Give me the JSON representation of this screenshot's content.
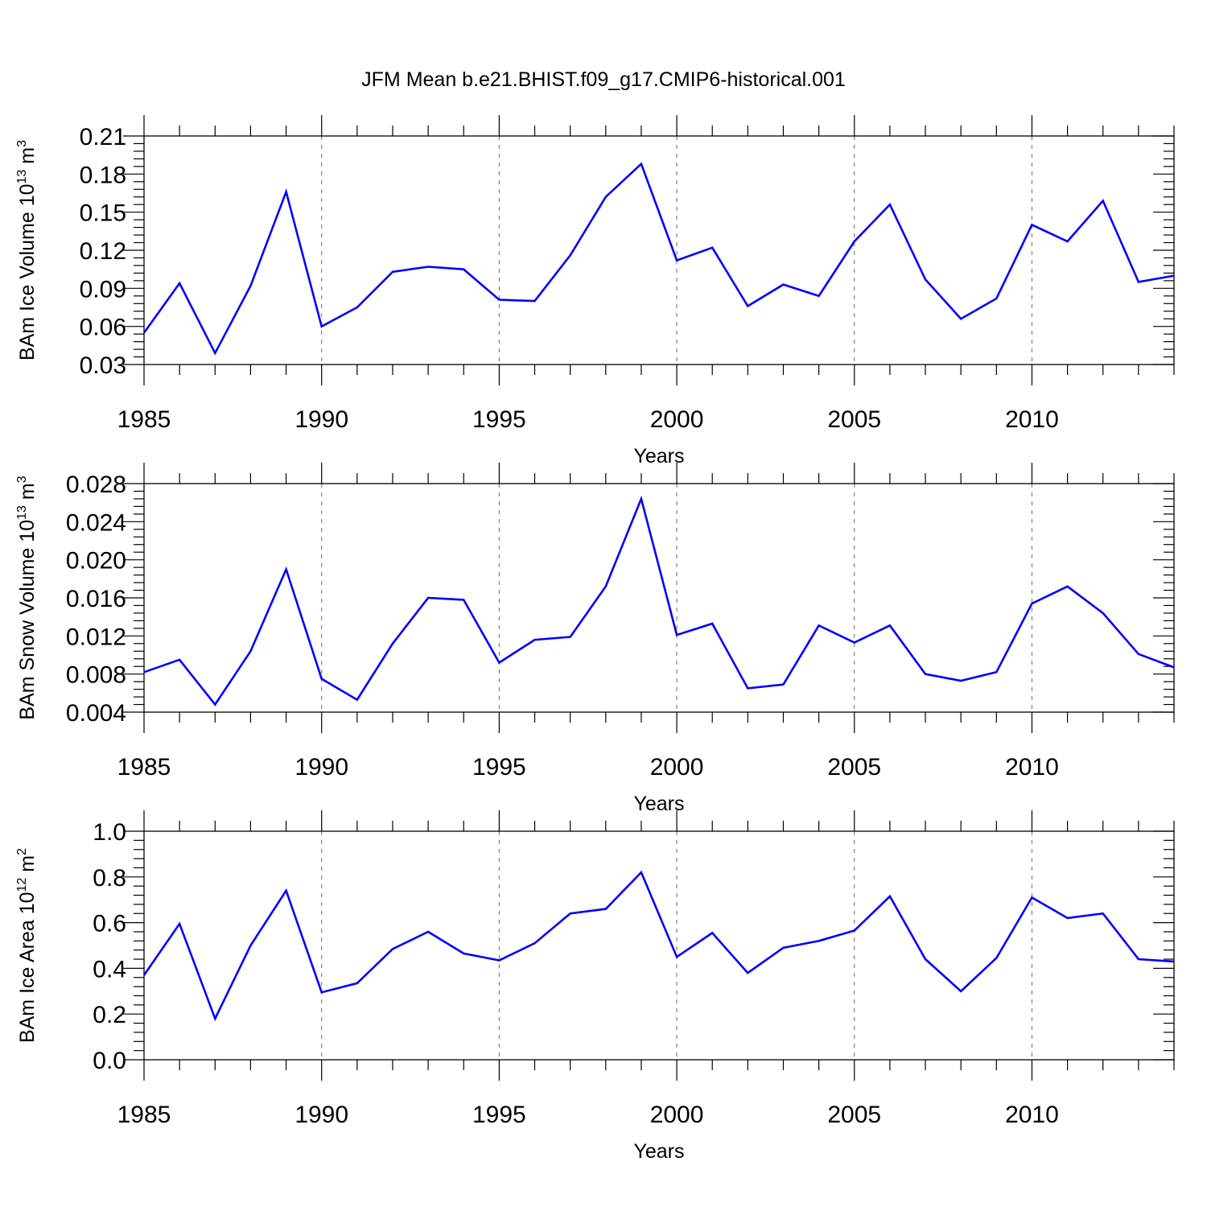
{
  "figure": {
    "title": "JFM Mean b.e21.BHIST.f09_g17.CMIP6-historical.001"
  },
  "colors": {
    "series": "#0000ff",
    "grid": "#777777",
    "axes": "#000000"
  },
  "chart_data": [
    {
      "type": "line",
      "title": "",
      "xlabel": "Years",
      "ylabel": "BAm Ice Volume 10",
      "ylabel_sup": "13",
      "ylabel_unit": " m",
      "ylabel_unit_sup": "3",
      "xlim": [
        1985,
        2014
      ],
      "ylim": [
        0.03,
        0.21
      ],
      "xticks": [
        1985,
        1990,
        1995,
        2000,
        2005,
        2010
      ],
      "xtick_labels": [
        "1985",
        "1990",
        "1995",
        "2000",
        "2005",
        "2010"
      ],
      "yticks": [
        0.03,
        0.06,
        0.09,
        0.12,
        0.15,
        0.18,
        0.21
      ],
      "ytick_labels": [
        "0.03",
        "0.06",
        "0.09",
        "0.12",
        "0.15",
        "0.18",
        "0.21"
      ],
      "grid": "vertical dashed lines at major x ticks",
      "x": [
        1985,
        1986,
        1987,
        1988,
        1989,
        1990,
        1991,
        1992,
        1993,
        1994,
        1995,
        1996,
        1997,
        1998,
        1999,
        2000,
        2001,
        2002,
        2003,
        2004,
        2005,
        2006,
        2007,
        2008,
        2009,
        2010,
        2011,
        2012,
        2013,
        2014
      ],
      "series": [
        {
          "values": [
            0.055,
            0.094,
            0.039,
            0.092,
            0.166,
            0.06,
            0.075,
            0.103,
            0.107,
            0.105,
            0.081,
            0.08,
            0.116,
            0.162,
            0.188,
            0.112,
            0.122,
            0.076,
            0.093,
            0.084,
            0.127,
            0.156,
            0.097,
            0.066,
            0.082,
            0.14,
            0.127,
            0.159,
            0.095,
            0.1
          ]
        }
      ]
    },
    {
      "type": "line",
      "title": "",
      "xlabel": "Years",
      "ylabel": "BAm Snow Volume 10",
      "ylabel_sup": "13",
      "ylabel_unit": " m",
      "ylabel_unit_sup": "3",
      "xlim": [
        1985,
        2014
      ],
      "ylim": [
        0.004,
        0.028
      ],
      "xticks": [
        1985,
        1990,
        1995,
        2000,
        2005,
        2010
      ],
      "xtick_labels": [
        "1985",
        "1990",
        "1995",
        "2000",
        "2005",
        "2010"
      ],
      "yticks": [
        0.004,
        0.008,
        0.012,
        0.016,
        0.02,
        0.024,
        0.028
      ],
      "ytick_labels": [
        "0.004",
        "0.008",
        "0.012",
        "0.016",
        "0.020",
        "0.024",
        "0.028"
      ],
      "grid": "vertical dashed lines at major x ticks",
      "x": [
        1985,
        1986,
        1987,
        1988,
        1989,
        1990,
        1991,
        1992,
        1993,
        1994,
        1995,
        1996,
        1997,
        1998,
        1999,
        2000,
        2001,
        2002,
        2003,
        2004,
        2005,
        2006,
        2007,
        2008,
        2009,
        2010,
        2011,
        2012,
        2013,
        2014
      ],
      "series": [
        {
          "values": [
            0.0082,
            0.0095,
            0.0048,
            0.0104,
            0.019,
            0.0075,
            0.0053,
            0.0112,
            0.016,
            0.0158,
            0.0092,
            0.0116,
            0.0119,
            0.0172,
            0.0264,
            0.0121,
            0.0133,
            0.0065,
            0.0069,
            0.0131,
            0.0113,
            0.0131,
            0.008,
            0.0073,
            0.0082,
            0.0154,
            0.0172,
            0.0144,
            0.0101,
            0.0087
          ]
        }
      ]
    },
    {
      "type": "line",
      "title": "",
      "xlabel": "Years",
      "ylabel": "BAm Ice Area 10",
      "ylabel_sup": "12",
      "ylabel_unit": " m",
      "ylabel_unit_sup": "2",
      "xlim": [
        1985,
        2014
      ],
      "ylim": [
        0.0,
        1.0
      ],
      "xticks": [
        1985,
        1990,
        1995,
        2000,
        2005,
        2010
      ],
      "xtick_labels": [
        "1985",
        "1990",
        "1995",
        "2000",
        "2005",
        "2010"
      ],
      "yticks": [
        0.0,
        0.2,
        0.4,
        0.6,
        0.8,
        1.0
      ],
      "ytick_labels": [
        "0.0",
        "0.2",
        "0.4",
        "0.6",
        "0.8",
        "1.0"
      ],
      "grid": "vertical dashed lines at major x ticks",
      "x": [
        1985,
        1986,
        1987,
        1988,
        1989,
        1990,
        1991,
        1992,
        1993,
        1994,
        1995,
        1996,
        1997,
        1998,
        1999,
        2000,
        2001,
        2002,
        2003,
        2004,
        2005,
        2006,
        2007,
        2008,
        2009,
        2010,
        2011,
        2012,
        2013,
        2014
      ],
      "series": [
        {
          "values": [
            0.37,
            0.595,
            0.18,
            0.5,
            0.74,
            0.295,
            0.335,
            0.485,
            0.56,
            0.465,
            0.435,
            0.51,
            0.64,
            0.66,
            0.82,
            0.45,
            0.555,
            0.38,
            0.49,
            0.52,
            0.565,
            0.715,
            0.44,
            0.3,
            0.445,
            0.71,
            0.62,
            0.64,
            0.44,
            0.43
          ]
        }
      ]
    }
  ]
}
